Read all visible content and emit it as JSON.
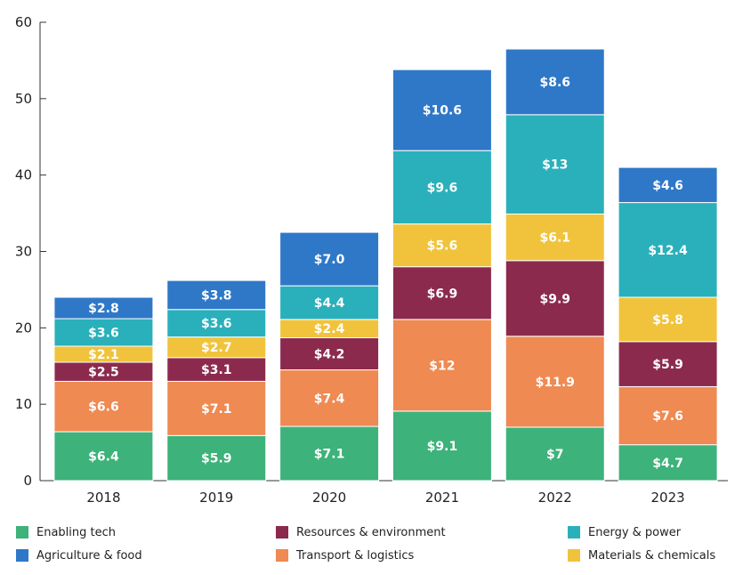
{
  "chart_data": {
    "type": "bar",
    "stacked": true,
    "categories": [
      "2018",
      "2019",
      "2020",
      "2021",
      "2022",
      "2023"
    ],
    "series": [
      {
        "name": "Enabling tech",
        "color": "#3db27a",
        "values": [
          6.4,
          5.9,
          7.1,
          9.1,
          7,
          4.7
        ],
        "labels": [
          "$6.4",
          "$5.9",
          "$7.1",
          "$9.1",
          "$7",
          "$4.7"
        ]
      },
      {
        "name": "Transport & logistics",
        "color": "#ee8a52",
        "values": [
          6.6,
          7.1,
          7.4,
          12,
          11.9,
          7.6
        ],
        "labels": [
          "$6.6",
          "$7.1",
          "$7.4",
          "$12",
          "$11.9",
          "$7.6"
        ]
      },
      {
        "name": "Resources & environment",
        "color": "#8c2a4e",
        "values": [
          2.5,
          3.1,
          4.2,
          6.9,
          9.9,
          5.9
        ],
        "labels": [
          "$2.5",
          "$3.1",
          "$4.2",
          "$6.9",
          "$9.9",
          "$5.9"
        ]
      },
      {
        "name": "Materials & chemicals",
        "color": "#f1c33c",
        "values": [
          2.1,
          2.7,
          2.4,
          5.6,
          6.1,
          5.8
        ],
        "labels": [
          "$2.1",
          "$2.7",
          "$2.4",
          "$5.6",
          "$6.1",
          "$5.8"
        ]
      },
      {
        "name": "Energy & power",
        "color": "#2ab0bb",
        "values": [
          3.6,
          3.6,
          4.4,
          9.6,
          13,
          12.4
        ],
        "labels": [
          "$3.6",
          "$3.6",
          "$4.4",
          "$9.6",
          "$13",
          "$12.4"
        ]
      },
      {
        "name": "Agriculture & food",
        "color": "#2f78c8",
        "values": [
          2.8,
          3.8,
          7.0,
          10.6,
          8.6,
          4.6
        ],
        "labels": [
          "$2.8",
          "$3.8",
          "$7.0",
          "$10.6",
          "$8.6",
          "$4.6"
        ]
      }
    ],
    "y_ticks": [
      "0",
      "10",
      "20",
      "30",
      "40",
      "50",
      "60"
    ],
    "ylim": [
      0,
      60
    ],
    "grid": false,
    "legend": {
      "placement": "bottom",
      "order": [
        "Enabling tech",
        "Resources & environment",
        "Energy & power",
        "Agriculture & food",
        "Transport & logistics",
        "Materials & chemicals"
      ]
    }
  }
}
